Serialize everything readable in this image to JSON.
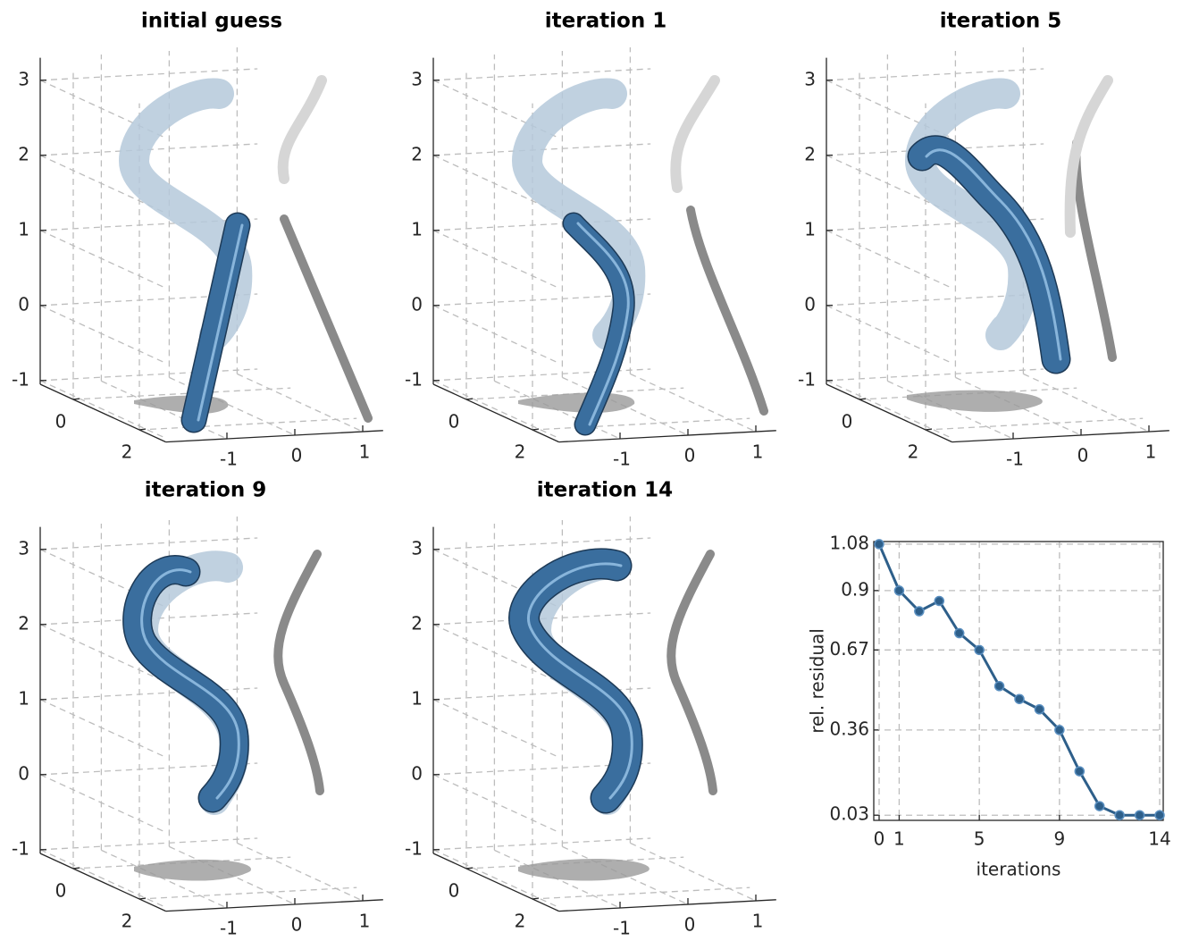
{
  "chart_data": [
    {
      "type": "tube3d",
      "title": "initial guess",
      "xlim": [
        -1.9,
        1.3
      ],
      "ylim": [
        -1,
        2.8
      ],
      "zlim": [
        -1.05,
        3.3
      ],
      "xticks": [
        -1,
        0,
        1
      ],
      "yticks": [
        0,
        2
      ],
      "zticks": [
        -1,
        0,
        1,
        2,
        3
      ],
      "grid": true
    },
    {
      "type": "tube3d",
      "title": "iteration 1",
      "xlim": [
        -1.9,
        1.3
      ],
      "ylim": [
        -1,
        2.8
      ],
      "zlim": [
        -1.05,
        3.3
      ],
      "xticks": [
        -1,
        0,
        1
      ],
      "yticks": [
        0,
        2
      ],
      "zticks": [
        -1,
        0,
        1,
        2,
        3
      ],
      "grid": true
    },
    {
      "type": "tube3d",
      "title": "iteration 5",
      "xlim": [
        -1.9,
        1.3
      ],
      "ylim": [
        -1,
        2.8
      ],
      "zlim": [
        -1.05,
        3.3
      ],
      "xticks": [
        -1,
        0,
        1
      ],
      "yticks": [
        0,
        2
      ],
      "zticks": [
        -1,
        0,
        1,
        2,
        3
      ],
      "grid": true
    },
    {
      "type": "tube3d",
      "title": "iteration 9",
      "xlim": [
        -1.9,
        1.3
      ],
      "ylim": [
        -1,
        2.8
      ],
      "zlim": [
        -1.05,
        3.3
      ],
      "xticks": [
        -1,
        0,
        1
      ],
      "yticks": [
        0,
        2
      ],
      "zticks": [
        -1,
        0,
        1,
        2,
        3
      ],
      "grid": true
    },
    {
      "type": "tube3d",
      "title": "iteration 14",
      "xlim": [
        -1.9,
        1.3
      ],
      "ylim": [
        -1,
        2.8
      ],
      "zlim": [
        -1.05,
        3.3
      ],
      "xticks": [
        -1,
        0,
        1
      ],
      "yticks": [
        0,
        2
      ],
      "zticks": [
        -1,
        0,
        1,
        2,
        3
      ],
      "grid": true
    },
    {
      "type": "line",
      "xlabel": "iterations",
      "ylabel": "rel. residual",
      "color": "#2e5f8a",
      "x": [
        0,
        1,
        2,
        3,
        4,
        5,
        6,
        7,
        8,
        9,
        10,
        11,
        12,
        13,
        14
      ],
      "values": [
        1.08,
        0.9,
        0.82,
        0.86,
        0.735,
        0.67,
        0.53,
        0.48,
        0.44,
        0.36,
        0.2,
        0.065,
        0.03,
        0.03,
        0.03
      ],
      "xlim": [
        0,
        14
      ],
      "ylim": [
        0.01,
        1.09
      ],
      "xticks": [
        0,
        1,
        5,
        9,
        14
      ],
      "yticks": [
        0.03,
        0.36,
        0.67,
        0.9,
        1.08
      ],
      "grid": true
    }
  ]
}
